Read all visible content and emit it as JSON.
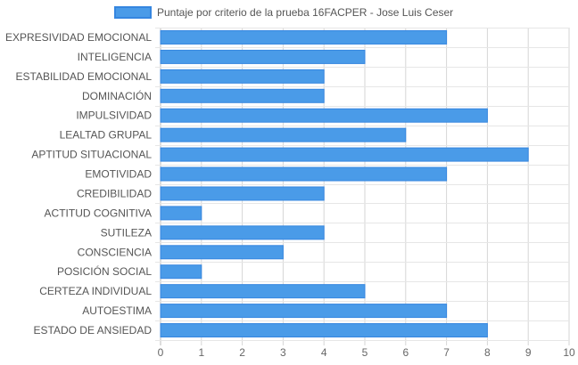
{
  "chart_data": {
    "type": "bar",
    "orientation": "horizontal",
    "title": "",
    "categories": [
      "EXPRESIVIDAD EMOCIONAL",
      "INTELIGENCIA",
      "ESTABILIDAD EMOCIONAL",
      "DOMINACIÓN",
      "IMPULSIVIDAD",
      "LEALTAD GRUPAL",
      "APTITUD SITUACIONAL",
      "EMOTIVIDAD",
      "CREDIBILIDAD",
      "ACTITUD COGNITIVA",
      "SUTILEZA",
      "CONSCIENCIA",
      "POSICIÓN SOCIAL",
      "CERTEZA INDIVIDUAL",
      "AUTOESTIMA",
      "ESTADO DE ANSIEDAD"
    ],
    "series": [
      {
        "name": "Puntaje por criterio de la prueba 16FACPER - Jose Luis Ceser",
        "values": [
          7,
          5,
          4,
          4,
          8,
          6,
          9,
          7,
          4,
          1,
          4,
          3,
          1,
          5,
          7,
          8
        ],
        "color": "#4a9be8",
        "border_color": "#3586e0"
      }
    ],
    "xlim": [
      0,
      10
    ],
    "x_ticks": [
      "0",
      "1",
      "2",
      "3",
      "4",
      "5",
      "6",
      "7",
      "8",
      "9",
      "10"
    ],
    "grid": true,
    "legend_position": "top"
  }
}
